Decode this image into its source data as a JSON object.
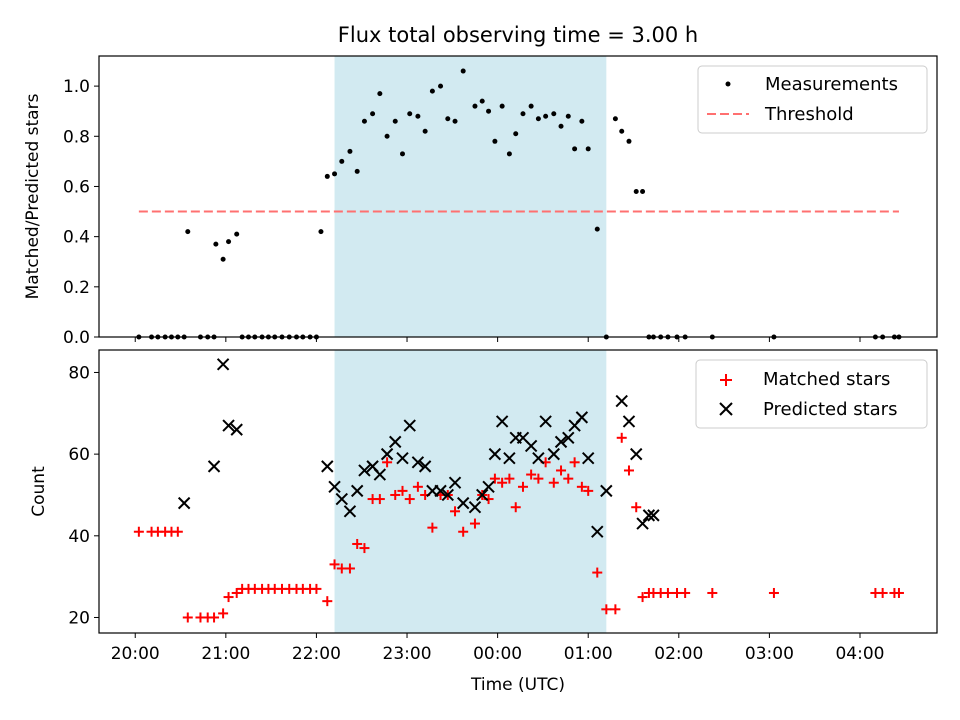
{
  "figure": {
    "title": "Flux total observing time = 3.00 h",
    "shaded_band": {
      "x_start": 22.2,
      "x_end": 25.2,
      "color": "#add8e6"
    }
  },
  "chart_data": [
    {
      "type": "scatter",
      "ylabel": "Matched/Predicted stars",
      "ylim": [
        0,
        1.12
      ],
      "xlim": [
        19.6,
        28.85
      ],
      "yticks": [
        "0.0",
        "0.2",
        "0.4",
        "0.6",
        "0.8",
        "1.0"
      ],
      "ytick_values": [
        0,
        0.2,
        0.4,
        0.6,
        0.8,
        1.0
      ],
      "legend": {
        "placement": "top-right",
        "entries": [
          "Measurements",
          "Threshold"
        ]
      },
      "series": [
        {
          "name": "Measurements",
          "marker": "dot",
          "color": "#000000",
          "x": [
            20.04,
            20.18,
            20.25,
            20.33,
            20.4,
            20.47,
            20.54,
            20.58,
            20.72,
            20.8,
            20.87,
            20.89,
            20.97,
            21.03,
            21.12,
            21.18,
            21.25,
            21.32,
            21.4,
            21.47,
            21.54,
            21.62,
            21.7,
            21.78,
            21.85,
            21.93,
            22.0,
            22.05,
            22.12,
            22.2,
            22.28,
            22.37,
            22.45,
            22.53,
            22.62,
            22.7,
            22.78,
            22.87,
            22.95,
            23.03,
            23.12,
            23.2,
            23.28,
            23.37,
            23.45,
            23.53,
            23.62,
            23.75,
            23.83,
            23.9,
            23.97,
            24.05,
            24.13,
            24.2,
            24.28,
            24.37,
            24.45,
            24.53,
            24.62,
            24.7,
            24.78,
            24.85,
            24.93,
            25.0,
            25.1,
            25.2,
            25.3,
            25.37,
            25.45,
            25.53,
            25.6,
            25.67,
            25.72,
            25.8,
            25.88,
            25.98,
            26.07,
            26.37,
            27.05,
            28.17,
            28.25,
            28.38,
            28.43
          ],
          "y": [
            0,
            0,
            0,
            0,
            0,
            0,
            0,
            0.42,
            0,
            0,
            0,
            0.37,
            0.31,
            0.38,
            0.41,
            0,
            0,
            0,
            0,
            0,
            0,
            0,
            0,
            0,
            0,
            0,
            0,
            0.42,
            0.64,
            0.65,
            0.7,
            0.74,
            0.66,
            0.86,
            0.89,
            0.97,
            0.8,
            0.86,
            0.73,
            0.89,
            0.88,
            0.82,
            0.98,
            1.0,
            0.87,
            0.86,
            1.06,
            0.92,
            0.94,
            0.9,
            0.78,
            0.92,
            0.73,
            0.81,
            0.89,
            0.92,
            0.87,
            0.88,
            0.89,
            0.84,
            0.88,
            0.75,
            0.86,
            0.75,
            0.43,
            0,
            0.87,
            0.82,
            0.78,
            0.58,
            0.58,
            0,
            0,
            0,
            0,
            0,
            0,
            0,
            0,
            0,
            0,
            0,
            0
          ]
        },
        {
          "name": "Threshold",
          "line_style": "dashed",
          "color": "#ff7070",
          "x": [
            20.04,
            28.43
          ],
          "y": [
            0.5,
            0.5
          ]
        }
      ]
    },
    {
      "type": "scatter",
      "xlabel": "Time (UTC)",
      "ylabel": "Count",
      "ylim": [
        16.2,
        85.5
      ],
      "xlim": [
        19.6,
        28.85
      ],
      "yticks": [
        "20",
        "40",
        "60",
        "80"
      ],
      "ytick_values": [
        20,
        40,
        60,
        80
      ],
      "xticks": [
        "20:00",
        "21:00",
        "22:00",
        "23:00",
        "00:00",
        "01:00",
        "02:00",
        "03:00",
        "04:00"
      ],
      "xtick_values": [
        20,
        21,
        22,
        23,
        24,
        25,
        26,
        27,
        28
      ],
      "legend": {
        "placement": "top-right",
        "entries": [
          "Matched stars",
          "Predicted stars"
        ]
      },
      "series": [
        {
          "name": "Matched stars",
          "marker": "plus",
          "color": "#ff0000",
          "x": [
            20.04,
            20.18,
            20.25,
            20.33,
            20.4,
            20.47,
            20.58,
            20.72,
            20.8,
            20.87,
            20.97,
            21.03,
            21.12,
            21.18,
            21.25,
            21.32,
            21.4,
            21.47,
            21.54,
            21.62,
            21.7,
            21.78,
            21.85,
            21.93,
            22.0,
            22.12,
            22.2,
            22.28,
            22.37,
            22.45,
            22.53,
            22.62,
            22.7,
            22.78,
            22.87,
            22.95,
            23.03,
            23.12,
            23.2,
            23.28,
            23.37,
            23.45,
            23.53,
            23.62,
            23.75,
            23.83,
            23.9,
            23.97,
            24.05,
            24.13,
            24.2,
            24.28,
            24.37,
            24.45,
            24.53,
            24.62,
            24.7,
            24.78,
            24.85,
            24.93,
            25.0,
            25.1,
            25.2,
            25.3,
            25.37,
            25.45,
            25.53,
            25.6,
            25.67,
            25.72,
            25.8,
            25.88,
            25.98,
            26.07,
            26.37,
            27.05,
            28.17,
            28.25,
            28.38,
            28.43
          ],
          "y": [
            41,
            41,
            41,
            41,
            41,
            41,
            20,
            20,
            20,
            20,
            21,
            25,
            26,
            27,
            27,
            27,
            27,
            27,
            27,
            27,
            27,
            27,
            27,
            27,
            27,
            24,
            33,
            32,
            32,
            38,
            37,
            49,
            49,
            58,
            50,
            51,
            49,
            52,
            50,
            42,
            50,
            50,
            46,
            41,
            43,
            50,
            49,
            54,
            53,
            54,
            47,
            52,
            55,
            54,
            58,
            53,
            56,
            54,
            58,
            52,
            51,
            31,
            22,
            22,
            64,
            56,
            47,
            25,
            26,
            26,
            26,
            26,
            26,
            26,
            26,
            26,
            26,
            26,
            26,
            26
          ],
          "comment": ""
        },
        {
          "name": "Predicted stars",
          "marker": "x",
          "color": "#000000",
          "x": [
            20.54,
            20.87,
            20.97,
            21.03,
            21.12,
            22.12,
            22.2,
            22.28,
            22.37,
            22.45,
            22.53,
            22.62,
            22.7,
            22.78,
            22.87,
            22.95,
            23.03,
            23.12,
            23.2,
            23.28,
            23.37,
            23.45,
            23.53,
            23.62,
            23.75,
            23.83,
            23.9,
            23.97,
            24.05,
            24.13,
            24.2,
            24.28,
            24.37,
            24.45,
            24.53,
            24.62,
            24.7,
            24.78,
            24.85,
            24.93,
            25.0,
            25.1,
            25.2,
            25.37,
            25.45,
            25.53,
            25.6,
            25.67,
            25.72
          ],
          "y": [
            48,
            57,
            82,
            67,
            66,
            57,
            52,
            49,
            46,
            51,
            56,
            57,
            55,
            60,
            63,
            59,
            67,
            58,
            57,
            51,
            51,
            50,
            53,
            48,
            47,
            50,
            52,
            60,
            68,
            59,
            64,
            64,
            62,
            59,
            68,
            60,
            63,
            64,
            67,
            69,
            59,
            41,
            51,
            73,
            68,
            60,
            43,
            45,
            45
          ]
        }
      ]
    }
  ]
}
